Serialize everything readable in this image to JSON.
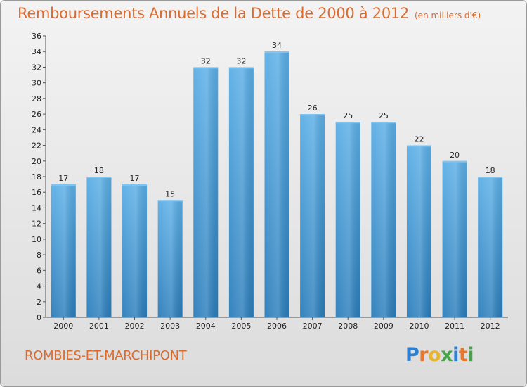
{
  "title": "Remboursements Annuels de la Dette de 2000 à 2012",
  "subtitle": "(en milliers d'€)",
  "commune": "ROMBIES-ET-MARCHIPONT",
  "logo": {
    "text": "Proxiti",
    "letters": [
      "P",
      "r",
      "o",
      "x",
      "i",
      "t",
      "i"
    ],
    "colors": [
      "#2e7fd0",
      "#e8762b",
      "#e8b62b",
      "#46a34a",
      "#2e7fd0",
      "#e8762b",
      "#46a34a"
    ]
  },
  "colors": {
    "bar_light": "#5aaee6",
    "bar_dark": "#2a7dbb",
    "title": "#d96b2f"
  },
  "chart_data": {
    "type": "bar",
    "title": "Remboursements Annuels de la Dette de 2000 à 2012",
    "subtitle": "(en milliers d'€)",
    "categories": [
      "2000",
      "2001",
      "2002",
      "2003",
      "2004",
      "2005",
      "2006",
      "2007",
      "2008",
      "2009",
      "2010",
      "2011",
      "2012"
    ],
    "values": [
      17,
      18,
      17,
      15,
      32,
      32,
      34,
      26,
      25,
      25,
      22,
      20,
      18
    ],
    "ylim": [
      0,
      36
    ],
    "yticks": [
      0,
      2,
      4,
      6,
      8,
      10,
      12,
      14,
      16,
      18,
      20,
      22,
      24,
      26,
      28,
      30,
      32,
      34,
      36
    ],
    "grid": false,
    "xlabel": "",
    "ylabel": ""
  }
}
